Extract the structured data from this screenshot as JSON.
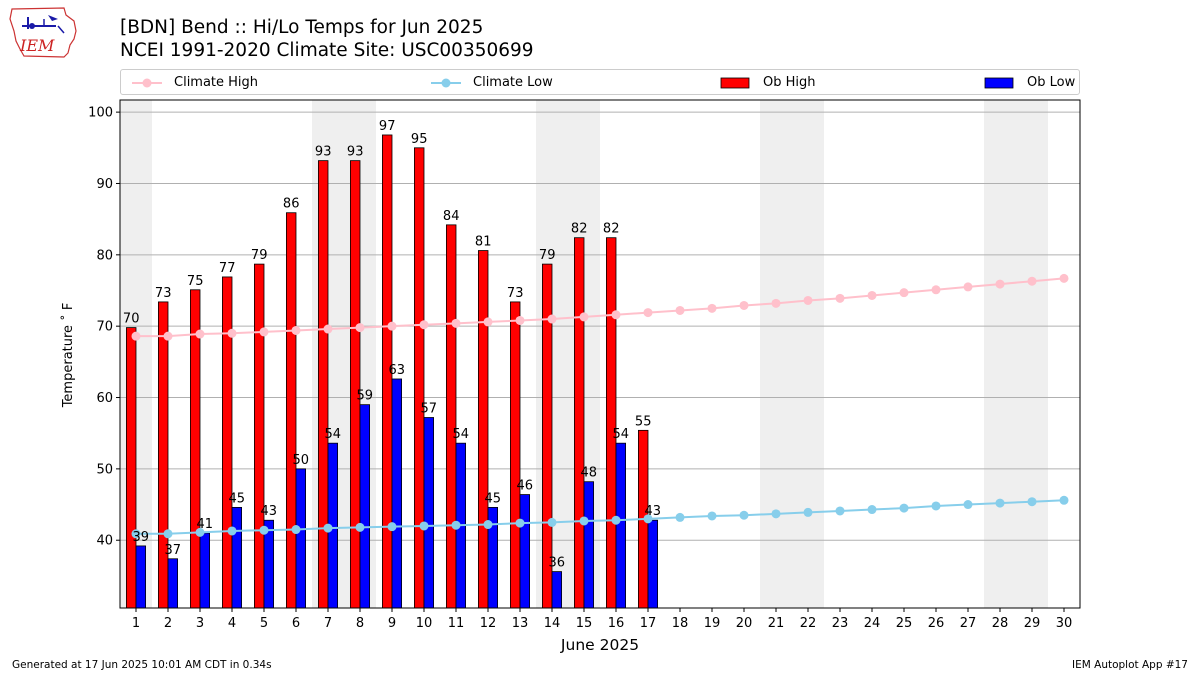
{
  "header": {
    "title_line1": "[BDN] Bend :: Hi/Lo Temps for Jun 2025",
    "title_line2": "NCEI 1991-2020 Climate Site: USC00350699",
    "logo_text": "IEM"
  },
  "footer": {
    "generated": "Generated at 17 Jun 2025 10:01 AM CDT in 0.34s",
    "app": "IEM Autoplot App #17"
  },
  "legend": {
    "climate_high": "Climate High",
    "climate_low": "Climate Low",
    "ob_high": "Ob High",
    "ob_low": "Ob Low"
  },
  "colors": {
    "ob_high": "#ff0000",
    "ob_low": "#0000ff",
    "climate_high": "#ffc0cb",
    "climate_low": "#87ceeb",
    "weekend_band": "#efefef",
    "grid": "#b0b0b0"
  },
  "chart_data": {
    "type": "bar",
    "title": "[BDN] Bend :: Hi/Lo Temps for Jun 2025",
    "subtitle": "NCEI 1991-2020 Climate Site: USC00350699",
    "xlabel": "June 2025",
    "ylabel": "Temperature ˚ F",
    "ylim": [
      30.5,
      101.7
    ],
    "yticks": [
      40,
      50,
      60,
      70,
      80,
      90,
      100
    ],
    "days": [
      1,
      2,
      3,
      4,
      5,
      6,
      7,
      8,
      9,
      10,
      11,
      12,
      13,
      14,
      15,
      16,
      17,
      18,
      19,
      20,
      21,
      22,
      23,
      24,
      25,
      26,
      27,
      28,
      29,
      30
    ],
    "weekend_bands": [
      [
        1,
        1
      ],
      [
        7,
        8
      ],
      [
        14,
        15
      ],
      [
        21,
        22
      ],
      [
        28,
        29
      ]
    ],
    "grid": "horizontal",
    "legend_position": "top",
    "series": [
      {
        "name": "Ob High",
        "kind": "bar",
        "values": [
          70,
          73,
          75,
          77,
          79,
          86,
          93,
          93,
          97,
          95,
          84,
          81,
          73,
          79,
          82,
          82,
          55
        ],
        "plotted": [
          69.8,
          73.4,
          75.1,
          76.9,
          78.7,
          85.9,
          93.2,
          93.2,
          96.8,
          95.0,
          84.2,
          80.6,
          73.4,
          78.7,
          82.4,
          82.4,
          55.4
        ]
      },
      {
        "name": "Ob Low",
        "kind": "bar",
        "values": [
          39,
          37,
          41,
          45,
          43,
          50,
          54,
          59,
          63,
          57,
          54,
          45,
          46,
          36,
          48,
          54,
          43
        ],
        "plotted": [
          39.2,
          37.4,
          41.0,
          44.6,
          42.8,
          50.0,
          53.6,
          59.0,
          62.6,
          57.2,
          53.6,
          44.6,
          46.4,
          35.6,
          48.2,
          53.6,
          42.8
        ]
      },
      {
        "name": "Climate High",
        "kind": "line",
        "values": [
          68.6,
          68.6,
          68.9,
          69.0,
          69.2,
          69.4,
          69.6,
          69.8,
          70.0,
          70.2,
          70.4,
          70.6,
          70.8,
          71.0,
          71.3,
          71.6,
          71.9,
          72.2,
          72.5,
          72.9,
          73.2,
          73.6,
          73.9,
          74.3,
          74.7,
          75.1,
          75.5,
          75.9,
          76.3,
          76.7
        ]
      },
      {
        "name": "Climate Low",
        "kind": "line",
        "values": [
          40.9,
          40.9,
          41.1,
          41.3,
          41.4,
          41.5,
          41.7,
          41.8,
          41.9,
          42.0,
          42.1,
          42.2,
          42.4,
          42.5,
          42.7,
          42.8,
          43.0,
          43.2,
          43.4,
          43.5,
          43.7,
          43.9,
          44.1,
          44.3,
          44.5,
          44.8,
          45.0,
          45.2,
          45.4,
          45.6
        ]
      }
    ]
  }
}
